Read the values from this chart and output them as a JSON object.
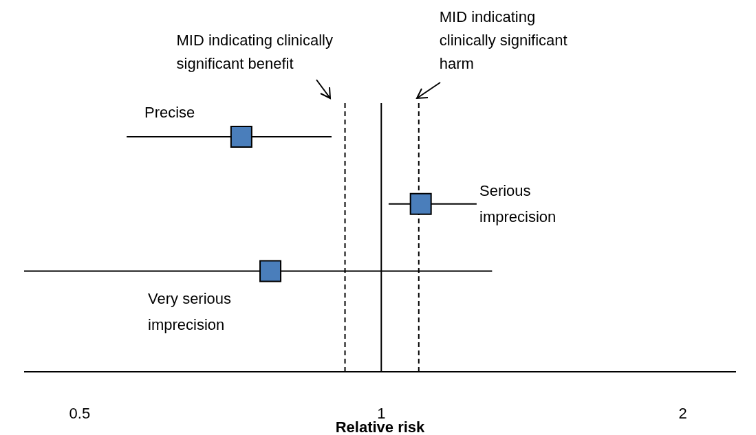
{
  "chart_data": {
    "type": "scatter",
    "orientation": "horizontal",
    "categories": [
      null,
      null,
      null,
      null
    ],
    "values": [
      0.725,
      1.095,
      0.775,
      null
    ],
    "errors": [
      [
        0.557,
        0.892
      ],
      [
        1.017,
        1.245
      ],
      [
        0.44,
        1.29
      ],
      null
    ],
    "color": "#4a7ebb",
    "marker": "square",
    "log": "x",
    "xlim": [
      0.44,
      2.26
    ],
    "xticks": [
      0.5,
      1,
      2
    ],
    "xlabel": "Relative risk",
    "grid": false,
    "legend": false,
    "ref_lines": [
      {
        "axis": "x",
        "value": 0.92,
        "label": "MID indicating clinically significant benefit",
        "line_style": "dashed"
      },
      {
        "axis": "x",
        "value": 1,
        "label": null,
        "line_style": "solid"
      },
      {
        "axis": "x",
        "value": 1.09,
        "label": "MID indicating clinically significant harm",
        "line_style": "dashed"
      }
    ],
    "annotations": [
      "Precise",
      "Serious imprecision",
      "Very serious imprecision"
    ]
  }
}
